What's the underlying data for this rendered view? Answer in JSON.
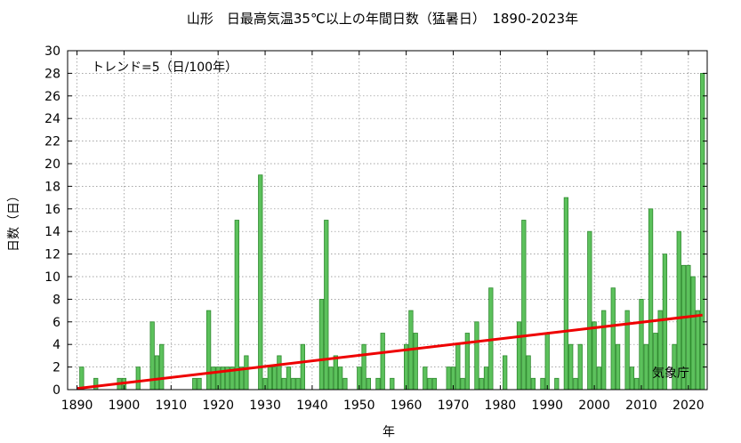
{
  "chart_data": {
    "type": "bar",
    "title": "山形　日最高気温35℃以上の年間日数（猛暑日）　1890-2023年",
    "xlabel": "年",
    "ylabel": "日数（日）",
    "xlim": [
      1888,
      2024
    ],
    "ylim": [
      0,
      30
    ],
    "x_ticks": [
      1890,
      1900,
      1910,
      1920,
      1930,
      1940,
      1950,
      1960,
      1970,
      1980,
      1990,
      2000,
      2010,
      2020
    ],
    "y_ticks": [
      0,
      2,
      4,
      6,
      8,
      10,
      12,
      14,
      16,
      18,
      20,
      22,
      24,
      26,
      28,
      30
    ],
    "grid": true,
    "trend_annotation": "トレンド=5（日/100年）",
    "source_label": "気象庁",
    "colors": {
      "bar_fill": "#5cc15c",
      "bar_edge": "#2f8a2f",
      "trend": "#ee0000"
    },
    "trend": {
      "x": [
        1890,
        2023
      ],
      "y": [
        0.1,
        6.6
      ]
    },
    "x": [
      1890,
      1891,
      1892,
      1893,
      1894,
      1895,
      1896,
      1897,
      1898,
      1899,
      1900,
      1901,
      1902,
      1903,
      1904,
      1905,
      1906,
      1907,
      1908,
      1909,
      1910,
      1911,
      1912,
      1913,
      1914,
      1915,
      1916,
      1917,
      1918,
      1919,
      1920,
      1921,
      1922,
      1923,
      1924,
      1925,
      1926,
      1927,
      1928,
      1929,
      1930,
      1931,
      1932,
      1933,
      1934,
      1935,
      1936,
      1937,
      1938,
      1939,
      1940,
      1941,
      1942,
      1943,
      1944,
      1945,
      1946,
      1947,
      1948,
      1949,
      1950,
      1951,
      1952,
      1953,
      1954,
      1955,
      1956,
      1957,
      1958,
      1959,
      1960,
      1961,
      1962,
      1963,
      1964,
      1965,
      1966,
      1967,
      1968,
      1969,
      1970,
      1971,
      1972,
      1973,
      1974,
      1975,
      1976,
      1977,
      1978,
      1979,
      1980,
      1981,
      1982,
      1983,
      1984,
      1985,
      1986,
      1987,
      1988,
      1989,
      1990,
      1991,
      1992,
      1993,
      1994,
      1995,
      1996,
      1997,
      1998,
      1999,
      2000,
      2001,
      2002,
      2003,
      2004,
      2005,
      2006,
      2007,
      2008,
      2009,
      2010,
      2011,
      2012,
      2013,
      2014,
      2015,
      2016,
      2017,
      2018,
      2019,
      2020,
      2021,
      2022,
      2023
    ],
    "values": [
      0,
      2,
      0,
      0,
      1,
      0,
      0,
      0,
      0,
      1,
      1,
      0,
      0,
      2,
      0,
      0,
      6,
      3,
      4,
      0,
      0,
      0,
      0,
      0,
      0,
      1,
      1,
      0,
      7,
      2,
      2,
      2,
      2,
      2,
      15,
      2,
      3,
      0,
      0,
      19,
      1,
      2,
      2,
      3,
      1,
      2,
      1,
      1,
      4,
      0,
      0,
      0,
      8,
      15,
      2,
      3,
      2,
      1,
      0,
      0,
      2,
      4,
      1,
      0,
      1,
      5,
      0,
      1,
      0,
      0,
      4,
      7,
      5,
      0,
      2,
      1,
      1,
      0,
      0,
      2,
      2,
      4,
      1,
      5,
      0,
      6,
      1,
      2,
      9,
      0,
      0,
      3,
      0,
      0,
      6,
      15,
      3,
      1,
      0,
      1,
      5,
      0,
      1,
      0,
      17,
      4,
      1,
      4,
      0,
      14,
      6,
      2,
      7,
      0,
      9,
      4,
      0,
      7,
      2,
      1,
      8,
      4,
      16,
      5,
      7,
      12,
      0,
      4,
      14,
      11,
      11,
      10,
      7,
      28
    ]
  }
}
